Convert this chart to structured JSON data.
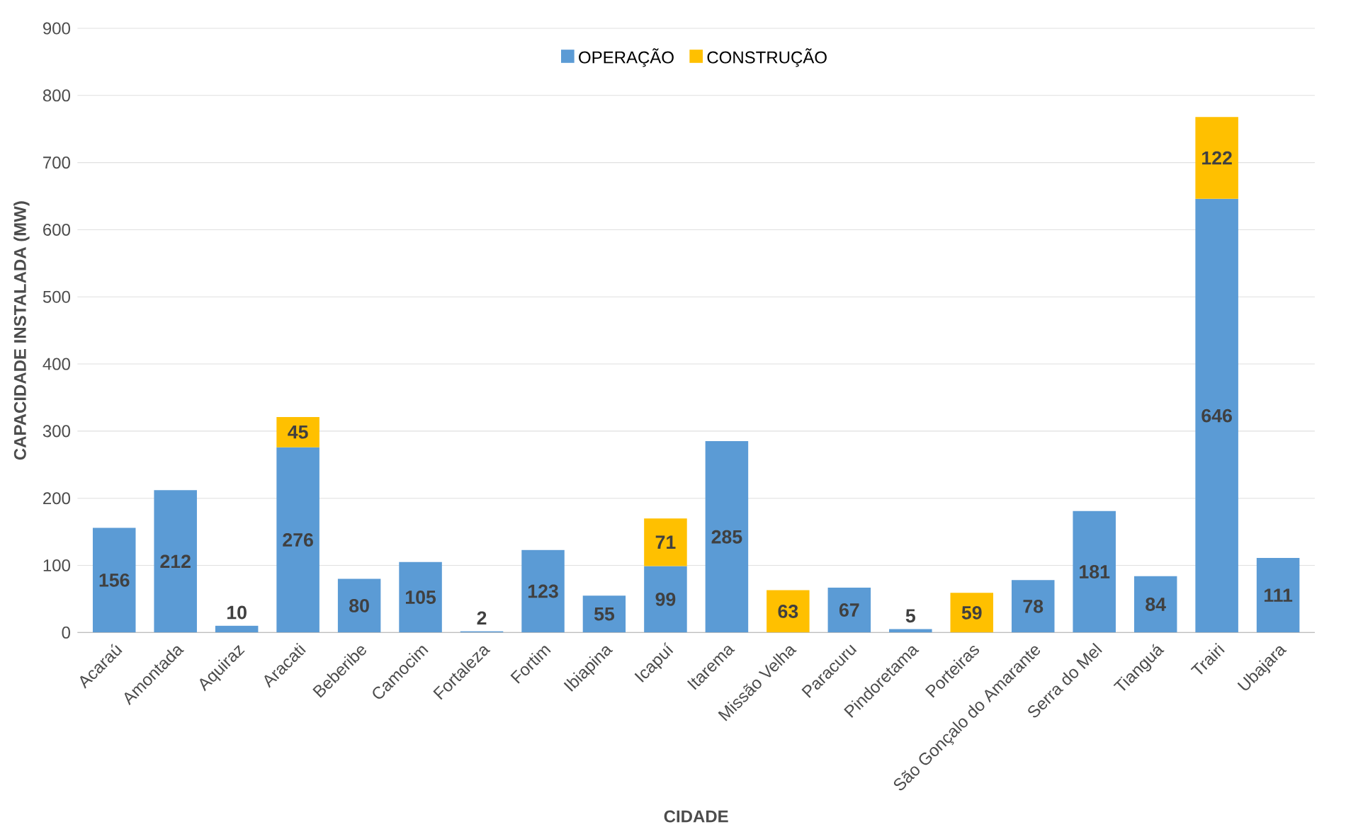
{
  "chart_data": {
    "type": "bar",
    "stacked": true,
    "xlabel": "CIDADE",
    "ylabel": "CAPACIDADE INSTALADA (MW)",
    "categories": [
      "Acaraú",
      "Amontada",
      "Aquiraz",
      "Aracati",
      "Beberibe",
      "Camocim",
      "Fortaleza",
      "Fortim",
      "Ibiapina",
      "Icapuí",
      "Itarema",
      "Missão Velha",
      "Paracuru",
      "Pindoretama",
      "Porteiras",
      "São Gonçalo do Amarante",
      "Serra do Mel",
      "Tianguá",
      "Trairi",
      "Ubajara"
    ],
    "series": [
      {
        "name": "OPERAÇÃO",
        "color": "#5b9bd5",
        "values": [
          156,
          212,
          10,
          276,
          80,
          105,
          2,
          123,
          55,
          99,
          285,
          null,
          67,
          5,
          null,
          78,
          181,
          84,
          646,
          111
        ]
      },
      {
        "name": "CONSTRUÇÃO",
        "color": "#ffc000",
        "values": [
          null,
          null,
          null,
          45,
          null,
          null,
          null,
          null,
          null,
          71,
          null,
          63,
          null,
          null,
          59,
          null,
          null,
          null,
          122,
          null
        ]
      }
    ],
    "ylim": [
      0,
      900
    ],
    "yticks": [
      0,
      100,
      200,
      300,
      400,
      500,
      600,
      700,
      800,
      900
    ],
    "grid": "y",
    "legend": "top",
    "data_labels": true
  }
}
